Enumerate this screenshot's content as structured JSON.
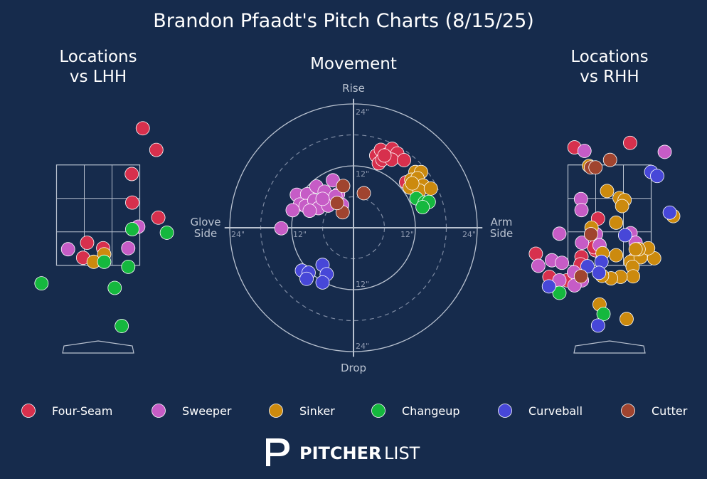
{
  "title": "Brandon Pfaadt's Pitch Charts (8/15/25)",
  "colors": {
    "background": "#162b4c",
    "Four-Seam": "#d7304d",
    "Sweeper": "#c65cc6",
    "Sinker": "#cc8a0e",
    "Changeup": "#15b83e",
    "Curveball": "#4747d8",
    "Cutter": "#a0442f"
  },
  "legend": [
    {
      "name": "Four-Seam",
      "color": "#d7304d"
    },
    {
      "name": "Sweeper",
      "color": "#c65cc6"
    },
    {
      "name": "Sinker",
      "color": "#cc8a0e"
    },
    {
      "name": "Changeup",
      "color": "#15b83e"
    },
    {
      "name": "Curveball",
      "color": "#4747d8"
    },
    {
      "name": "Cutter",
      "color": "#a0442f"
    }
  ],
  "brand": {
    "part1": "PITCHER",
    "part2": "LIST",
    "icon": "pitcherlist-logo-icon"
  },
  "chart_data": [
    {
      "type": "scatter",
      "title": "Locations\nvs LHH",
      "zone": {
        "x": [
          -0.83,
          0.83
        ],
        "y": [
          1.5,
          3.5
        ]
      },
      "points": [
        {
          "pitch": "Four-Seam",
          "x": 0.89,
          "y": 4.23
        },
        {
          "pitch": "Four-Seam",
          "x": 1.16,
          "y": 3.8
        },
        {
          "pitch": "Four-Seam",
          "x": 0.67,
          "y": 3.32
        },
        {
          "pitch": "Four-Seam",
          "x": 0.68,
          "y": 2.75
        },
        {
          "pitch": "Four-Seam",
          "x": 1.2,
          "y": 2.45
        },
        {
          "pitch": "Four-Seam",
          "x": -0.22,
          "y": 1.95
        },
        {
          "pitch": "Four-Seam",
          "x": 0.1,
          "y": 1.84
        },
        {
          "pitch": "Four-Seam",
          "x": -0.3,
          "y": 1.65
        },
        {
          "pitch": "Sweeper",
          "x": -0.6,
          "y": 1.82
        },
        {
          "pitch": "Sweeper",
          "x": 0.8,
          "y": 2.27
        },
        {
          "pitch": "Sweeper",
          "x": 0.6,
          "y": 1.84
        },
        {
          "pitch": "Sinker",
          "x": 0.12,
          "y": 1.72
        },
        {
          "pitch": "Sinker",
          "x": -0.09,
          "y": 1.57
        },
        {
          "pitch": "Changeup",
          "x": 0.68,
          "y": 2.22
        },
        {
          "pitch": "Changeup",
          "x": 1.37,
          "y": 2.15
        },
        {
          "pitch": "Changeup",
          "x": 0.12,
          "y": 1.57
        },
        {
          "pitch": "Changeup",
          "x": 0.6,
          "y": 1.47
        },
        {
          "pitch": "Changeup",
          "x": -1.13,
          "y": 1.14
        },
        {
          "pitch": "Changeup",
          "x": 0.33,
          "y": 1.05
        },
        {
          "pitch": "Changeup",
          "x": 0.47,
          "y": 0.29
        }
      ]
    },
    {
      "type": "scatter",
      "title": "Movement",
      "axis_labels": {
        "top": "Rise",
        "bottom": "Drop",
        "left": "Glove\nSide",
        "right": "Arm\nSide"
      },
      "ring_labels": {
        "r12": "12\"",
        "r24": "24\""
      },
      "rings": [
        6,
        12,
        18,
        24
      ],
      "points": [
        {
          "pitch": "Four-Seam",
          "x": 4.4,
          "y": 14.0
        },
        {
          "pitch": "Four-Seam",
          "x": 5.3,
          "y": 15.1
        },
        {
          "pitch": "Four-Seam",
          "x": 6.5,
          "y": 14.2
        },
        {
          "pitch": "Four-Seam",
          "x": 7.5,
          "y": 15.3
        },
        {
          "pitch": "Four-Seam",
          "x": 8.5,
          "y": 14.4
        },
        {
          "pitch": "Four-Seam",
          "x": 4.9,
          "y": 12.5
        },
        {
          "pitch": "Four-Seam",
          "x": 5.6,
          "y": 13.2
        },
        {
          "pitch": "Four-Seam",
          "x": 7.4,
          "y": 13.2
        },
        {
          "pitch": "Four-Seam",
          "x": 9.8,
          "y": 13.1
        },
        {
          "pitch": "Four-Seam",
          "x": 10.2,
          "y": 8.8
        },
        {
          "pitch": "Four-Seam",
          "x": 6.0,
          "y": 14.0
        },
        {
          "pitch": "Sinker",
          "x": 12.0,
          "y": 10.8
        },
        {
          "pitch": "Sinker",
          "x": 13.1,
          "y": 10.8
        },
        {
          "pitch": "Sinker",
          "x": 11.2,
          "y": 9.3
        },
        {
          "pitch": "Sinker",
          "x": 12.4,
          "y": 9.6
        },
        {
          "pitch": "Sinker",
          "x": 13.5,
          "y": 8.2
        },
        {
          "pitch": "Sinker",
          "x": 10.9,
          "y": 7.8
        },
        {
          "pitch": "Sinker",
          "x": 12.8,
          "y": 7.2
        },
        {
          "pitch": "Sinker",
          "x": 15.0,
          "y": 7.6
        },
        {
          "pitch": "Sinker",
          "x": 11.4,
          "y": 8.6
        },
        {
          "pitch": "Changeup",
          "x": 12.2,
          "y": 5.7
        },
        {
          "pitch": "Changeup",
          "x": 13.8,
          "y": 4.9
        },
        {
          "pitch": "Changeup",
          "x": 14.6,
          "y": 5.0
        },
        {
          "pitch": "Changeup",
          "x": 13.4,
          "y": 4.0
        },
        {
          "pitch": "Sweeper",
          "x": -11.0,
          "y": 6.4
        },
        {
          "pitch": "Sweeper",
          "x": -9.0,
          "y": 6.5
        },
        {
          "pitch": "Sweeper",
          "x": -7.2,
          "y": 8.0
        },
        {
          "pitch": "Sweeper",
          "x": -4.0,
          "y": 9.2
        },
        {
          "pitch": "Sweeper",
          "x": -3.0,
          "y": 6.5
        },
        {
          "pitch": "Sweeper",
          "x": -5.6,
          "y": 7.0
        },
        {
          "pitch": "Sweeper",
          "x": -10.4,
          "y": 4.5
        },
        {
          "pitch": "Sweeper",
          "x": -9.3,
          "y": 4.2
        },
        {
          "pitch": "Sweeper",
          "x": -7.6,
          "y": 5.3
        },
        {
          "pitch": "Sweeper",
          "x": -6.8,
          "y": 3.8
        },
        {
          "pitch": "Sweeper",
          "x": -4.9,
          "y": 4.3
        },
        {
          "pitch": "Sweeper",
          "x": -2.2,
          "y": 4.4
        },
        {
          "pitch": "Sweeper",
          "x": -11.8,
          "y": 3.4
        },
        {
          "pitch": "Sweeper",
          "x": -8.5,
          "y": 3.3
        },
        {
          "pitch": "Sweeper",
          "x": -14.0,
          "y": -0.1
        },
        {
          "pitch": "Sweeper",
          "x": -3.5,
          "y": 6.1
        },
        {
          "pitch": "Sweeper",
          "x": -6.0,
          "y": 5.6
        },
        {
          "pitch": "Cutter",
          "x": -2.0,
          "y": 8.1
        },
        {
          "pitch": "Cutter",
          "x": 2.0,
          "y": 6.7
        },
        {
          "pitch": "Cutter",
          "x": -2.1,
          "y": 3.0
        },
        {
          "pitch": "Cutter",
          "x": -3.2,
          "y": 4.8
        },
        {
          "pitch": "Curveball",
          "x": -6.0,
          "y": -7.2
        },
        {
          "pitch": "Curveball",
          "x": -10.0,
          "y": -8.3
        },
        {
          "pitch": "Curveball",
          "x": -8.7,
          "y": -8.7
        },
        {
          "pitch": "Curveball",
          "x": -5.2,
          "y": -9.0
        },
        {
          "pitch": "Curveball",
          "x": -9.1,
          "y": -9.9
        },
        {
          "pitch": "Curveball",
          "x": -6.0,
          "y": -10.6
        }
      ]
    },
    {
      "type": "scatter",
      "title": "Locations\nvs RHH",
      "zone": {
        "x": [
          -0.83,
          0.83
        ],
        "y": [
          1.5,
          3.5
        ]
      },
      "points": [
        {
          "pitch": "Four-Seam",
          "x": -0.7,
          "y": 3.85
        },
        {
          "pitch": "Four-Seam",
          "x": 0.41,
          "y": 3.94
        },
        {
          "pitch": "Four-Seam",
          "x": -0.23,
          "y": 2.43
        },
        {
          "pitch": "Four-Seam",
          "x": -0.28,
          "y": 1.8
        },
        {
          "pitch": "Four-Seam",
          "x": -1.47,
          "y": 1.73
        },
        {
          "pitch": "Four-Seam",
          "x": -0.56,
          "y": 1.67
        },
        {
          "pitch": "Four-Seam",
          "x": 0.47,
          "y": 1.6
        },
        {
          "pitch": "Four-Seam",
          "x": -0.58,
          "y": 1.52
        },
        {
          "pitch": "Four-Seam",
          "x": -1.2,
          "y": 1.27
        },
        {
          "pitch": "Four-Seam",
          "x": -0.85,
          "y": 1.2
        },
        {
          "pitch": "Four-Seam",
          "x": -0.31,
          "y": 1.86
        },
        {
          "pitch": "Sweeper",
          "x": -0.5,
          "y": 3.78
        },
        {
          "pitch": "Sweeper",
          "x": 1.1,
          "y": 3.76
        },
        {
          "pitch": "Sweeper",
          "x": -0.57,
          "y": 2.82
        },
        {
          "pitch": "Sweeper",
          "x": -0.56,
          "y": 2.6
        },
        {
          "pitch": "Sweeper",
          "x": -1.0,
          "y": 2.13
        },
        {
          "pitch": "Sweeper",
          "x": -0.27,
          "y": 2.12
        },
        {
          "pitch": "Sweeper",
          "x": 0.42,
          "y": 2.14
        },
        {
          "pitch": "Sweeper",
          "x": -0.55,
          "y": 1.95
        },
        {
          "pitch": "Sweeper",
          "x": 0.52,
          "y": 1.95
        },
        {
          "pitch": "Sweeper",
          "x": -0.2,
          "y": 1.9
        },
        {
          "pitch": "Sweeper",
          "x": -1.15,
          "y": 1.6
        },
        {
          "pitch": "Sweeper",
          "x": -0.95,
          "y": 1.55
        },
        {
          "pitch": "Sweeper",
          "x": -0.71,
          "y": 1.36
        },
        {
          "pitch": "Sweeper",
          "x": -1.0,
          "y": 1.2
        },
        {
          "pitch": "Sweeper",
          "x": -0.55,
          "y": 1.2
        },
        {
          "pitch": "Sweeper",
          "x": -0.7,
          "y": 1.1
        },
        {
          "pitch": "Sweeper",
          "x": -1.42,
          "y": 1.49
        },
        {
          "pitch": "Sinker",
          "x": -0.41,
          "y": 3.48
        },
        {
          "pitch": "Sinker",
          "x": -0.05,
          "y": 2.98
        },
        {
          "pitch": "Sinker",
          "x": 0.2,
          "y": 2.84
        },
        {
          "pitch": "Sinker",
          "x": 0.3,
          "y": 2.8
        },
        {
          "pitch": "Sinker",
          "x": 0.25,
          "y": 2.68
        },
        {
          "pitch": "Sinker",
          "x": 0.13,
          "y": 2.35
        },
        {
          "pitch": "Sinker",
          "x": -0.36,
          "y": 2.25
        },
        {
          "pitch": "Sinker",
          "x": -0.14,
          "y": 1.74
        },
        {
          "pitch": "Sinker",
          "x": 0.13,
          "y": 1.7
        },
        {
          "pitch": "Sinker",
          "x": 0.42,
          "y": 1.57
        },
        {
          "pitch": "Sinker",
          "x": 0.62,
          "y": 1.66
        },
        {
          "pitch": "Sinker",
          "x": 0.89,
          "y": 1.64
        },
        {
          "pitch": "Sinker",
          "x": 0.77,
          "y": 1.84
        },
        {
          "pitch": "Sinker",
          "x": 0.46,
          "y": 1.47
        },
        {
          "pitch": "Sinker",
          "x": 0.47,
          "y": 1.28
        },
        {
          "pitch": "Sinker",
          "x": 0.22,
          "y": 1.27
        },
        {
          "pitch": "Sinker",
          "x": 0.03,
          "y": 1.24
        },
        {
          "pitch": "Sinker",
          "x": -0.15,
          "y": 1.29
        },
        {
          "pitch": "Sinker",
          "x": -0.2,
          "y": 0.72
        },
        {
          "pitch": "Sinker",
          "x": 0.34,
          "y": 0.43
        },
        {
          "pitch": "Sinker",
          "x": 1.27,
          "y": 2.48
        },
        {
          "pitch": "Sinker",
          "x": 0.58,
          "y": 1.82
        },
        {
          "pitch": "Sinker",
          "x": 0.52,
          "y": 1.82
        },
        {
          "pitch": "Changeup",
          "x": -1.0,
          "y": 0.95
        },
        {
          "pitch": "Changeup",
          "x": -0.12,
          "y": 0.53
        },
        {
          "pitch": "Curveball",
          "x": 0.83,
          "y": 3.36
        },
        {
          "pitch": "Curveball",
          "x": 0.95,
          "y": 3.28
        },
        {
          "pitch": "Curveball",
          "x": 1.2,
          "y": 2.55
        },
        {
          "pitch": "Curveball",
          "x": 0.31,
          "y": 2.1
        },
        {
          "pitch": "Curveball",
          "x": -0.16,
          "y": 1.57
        },
        {
          "pitch": "Curveball",
          "x": -0.44,
          "y": 1.48
        },
        {
          "pitch": "Curveball",
          "x": -0.21,
          "y": 1.35
        },
        {
          "pitch": "Curveball",
          "x": -1.21,
          "y": 1.08
        },
        {
          "pitch": "Curveball",
          "x": -0.23,
          "y": 0.3
        },
        {
          "pitch": "Cutter",
          "x": -0.37,
          "y": 3.45
        },
        {
          "pitch": "Cutter",
          "x": -0.28,
          "y": 3.45
        },
        {
          "pitch": "Cutter",
          "x": 0.01,
          "y": 3.6
        },
        {
          "pitch": "Cutter",
          "x": -0.37,
          "y": 2.12
        },
        {
          "pitch": "Cutter",
          "x": -0.57,
          "y": 1.28
        }
      ]
    }
  ]
}
